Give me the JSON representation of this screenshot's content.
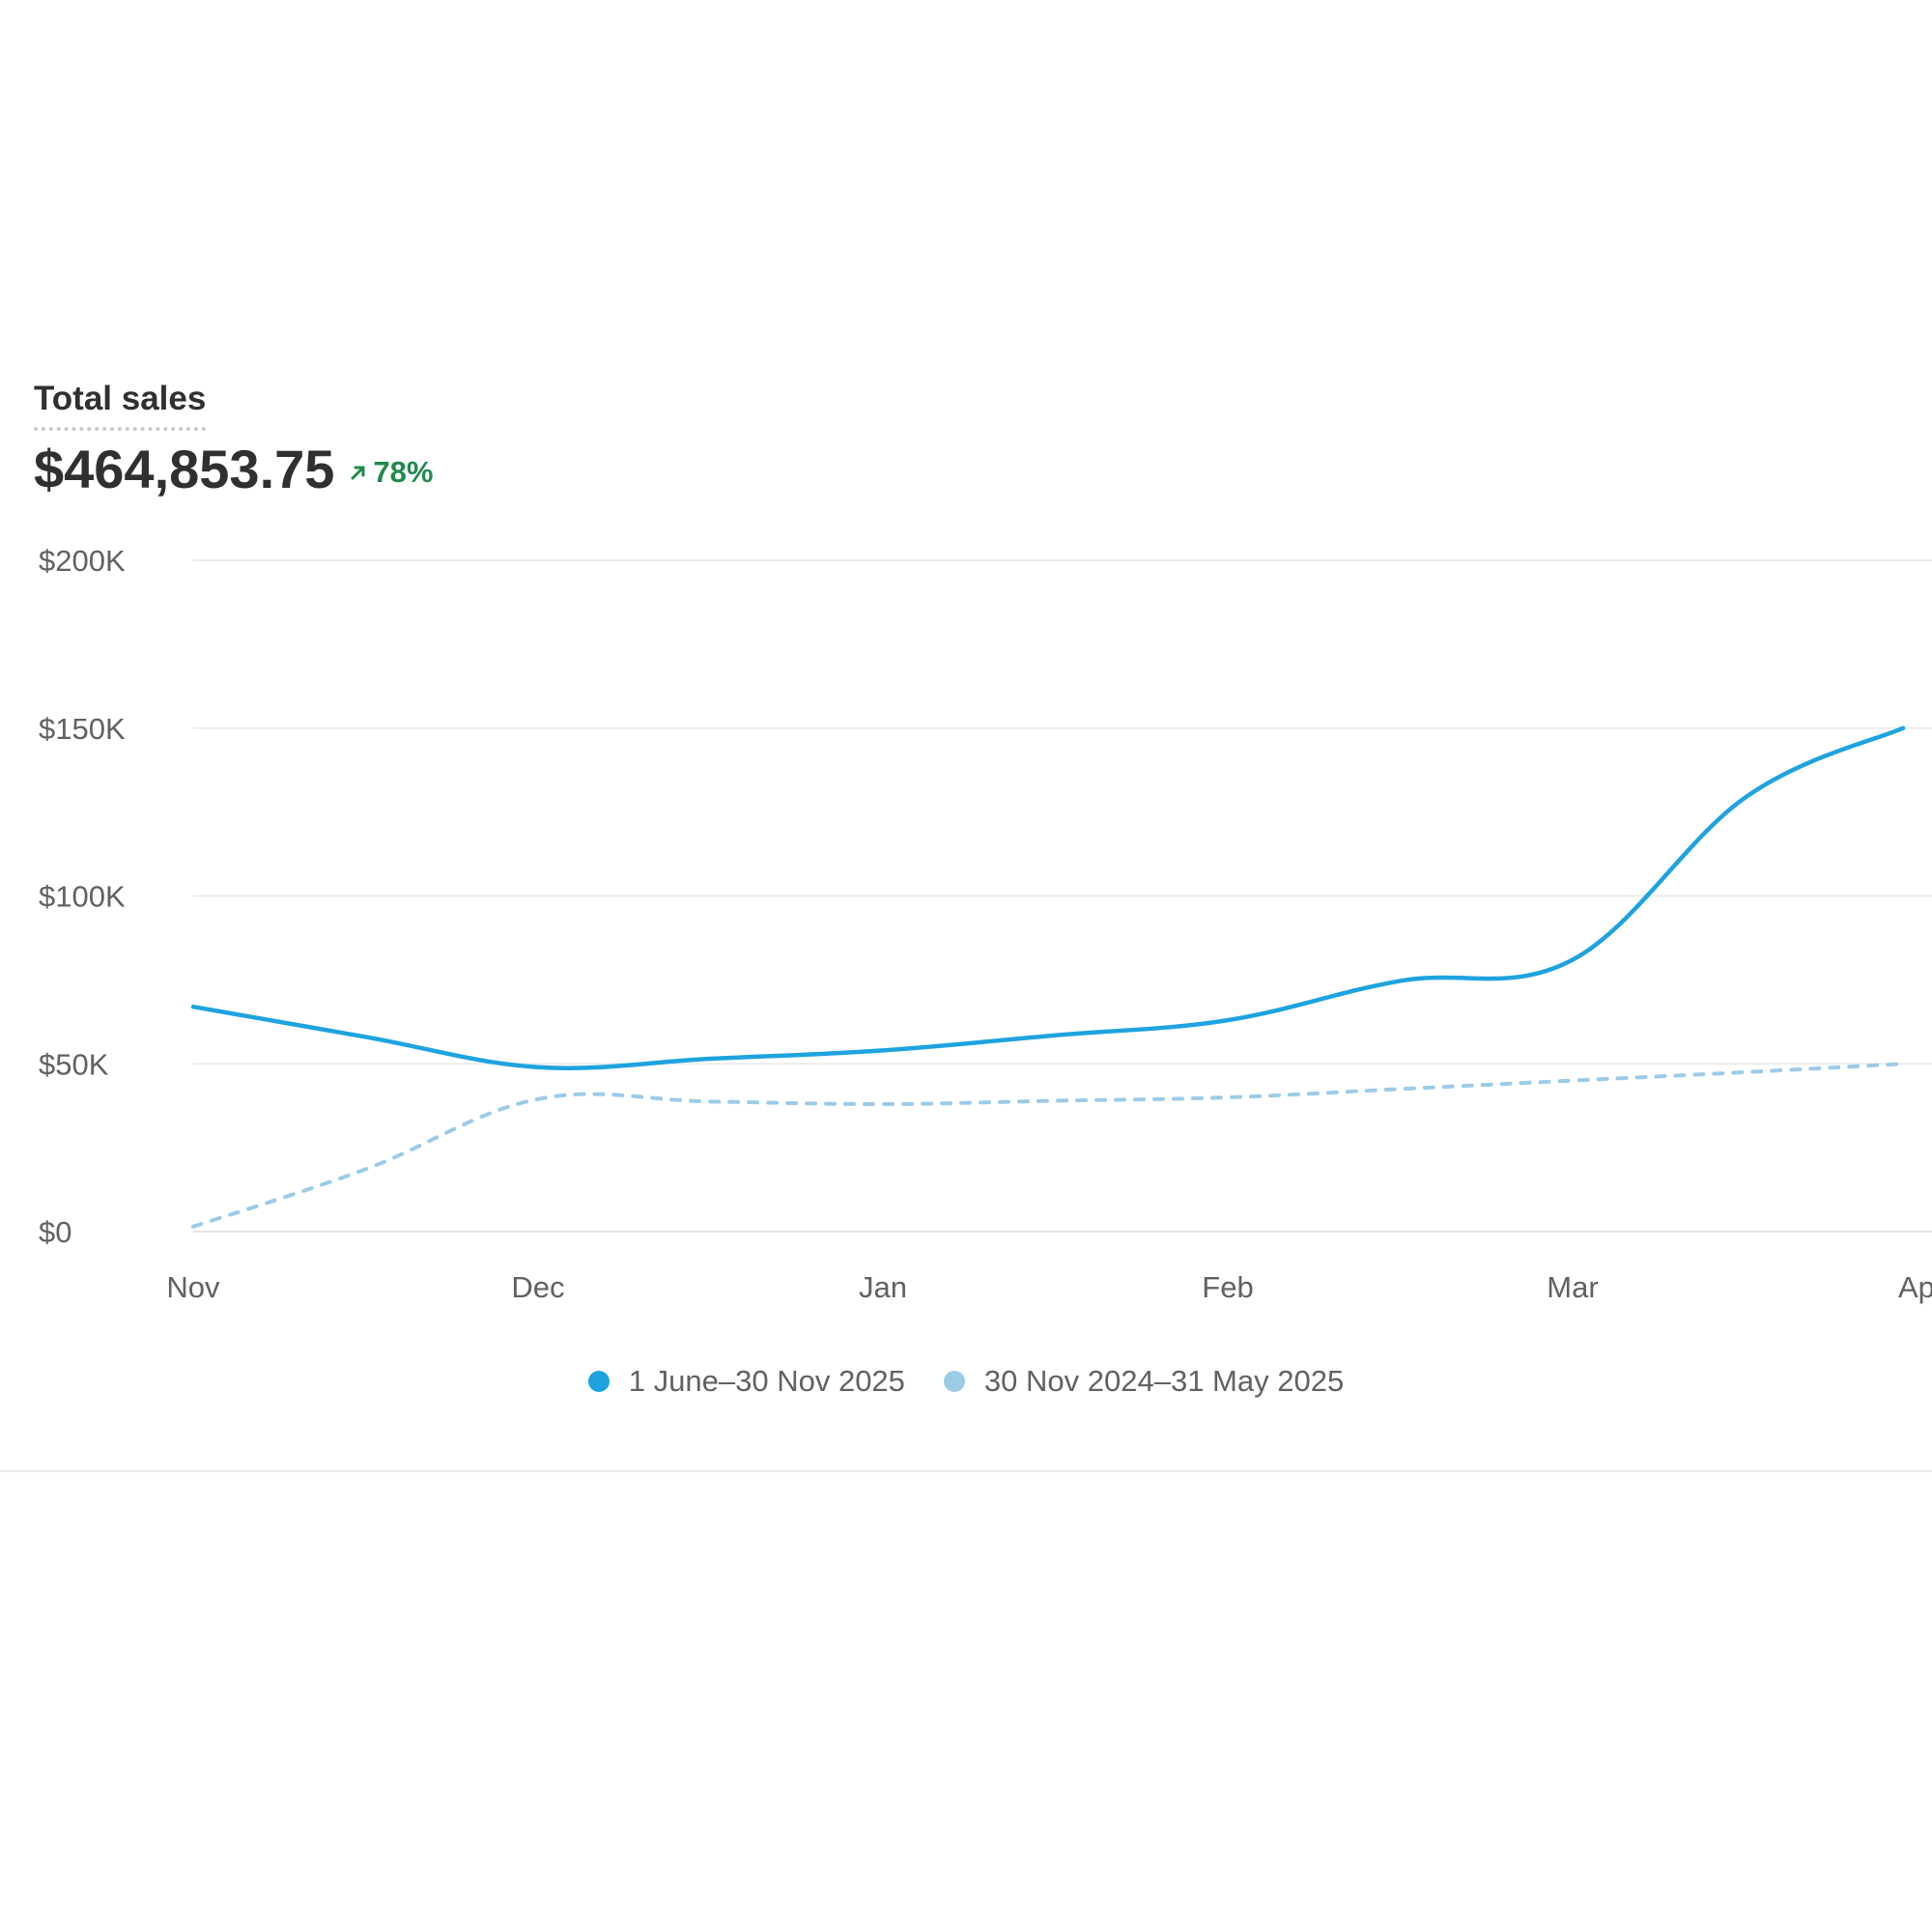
{
  "metric": {
    "label": "Total sales",
    "value": "$464,853.75",
    "change": "78%",
    "change_direction": "up",
    "change_color": "#1f8a4c",
    "change_icon": "arrow-up-right-icon"
  },
  "legend": {
    "items": [
      {
        "label": "1 June–30 Nov 2025",
        "color": "#1ea3df"
      },
      {
        "label": "30 Nov 2024–31 May 2025",
        "color": "#9ccbe8"
      }
    ]
  },
  "chart_data": {
    "type": "line",
    "title": "",
    "xlabel": "",
    "ylabel": "",
    "x_ticks": [
      "Nov",
      "Dec",
      "Jan",
      "Feb",
      "Mar",
      "Ap"
    ],
    "y_ticks": [
      "$0",
      "$50K",
      "$100K",
      "$150K",
      "$200K"
    ],
    "ylim": [
      0,
      200000
    ],
    "grid": true,
    "legend_position": "bottom",
    "series": [
      {
        "name": "1 June–30 Nov 2025",
        "color": "#1ea3df",
        "style": "solid",
        "x": [
          "Nov",
          "Dec",
          "Jan",
          "Feb",
          "Mar"
        ],
        "values": [
          67000,
          49000,
          54000,
          63000,
          81000
        ],
        "end_value": 150000
      },
      {
        "name": "30 Nov 2024–31 May 2025",
        "color": "#9ccbe8",
        "style": "dashed",
        "x": [
          "Nov",
          "Dec",
          "Jan",
          "Feb",
          "Mar"
        ],
        "values": [
          1500,
          39500,
          38000,
          40000,
          45000
        ],
        "end_value": 50000
      }
    ]
  }
}
